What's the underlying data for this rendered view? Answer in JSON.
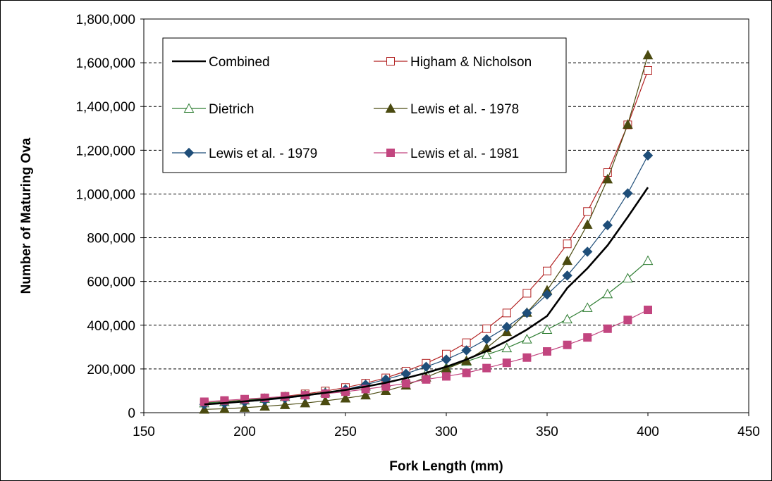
{
  "chart_data": {
    "type": "line",
    "title": "",
    "xlabel": "Fork Length (mm)",
    "ylabel": "Number of Maturing Ova",
    "xlim": [
      150,
      450
    ],
    "ylim": [
      0,
      1800000
    ],
    "x_ticks": [
      150,
      200,
      250,
      300,
      350,
      400,
      450
    ],
    "x_tick_labels": [
      "150",
      "200",
      "250",
      "300",
      "350",
      "400",
      "450"
    ],
    "y_ticks": [
      0,
      200000,
      400000,
      600000,
      800000,
      1000000,
      1200000,
      1400000,
      1600000,
      1800000
    ],
    "y_tick_labels": [
      "0",
      "200,000",
      "400,000",
      "600,000",
      "800,000",
      "1,000,000",
      "1,200,000",
      "1,400,000",
      "1,600,000",
      "1,800,000"
    ],
    "grid": "horizontal dashed",
    "legend_position": "top-left inside",
    "x": [
      180,
      190,
      200,
      210,
      220,
      230,
      240,
      250,
      260,
      270,
      280,
      290,
      300,
      310,
      320,
      330,
      340,
      350,
      360,
      370,
      380,
      390,
      400
    ],
    "series": [
      {
        "name": "Combined",
        "color": "#000000",
        "marker": "none",
        "values": [
          38000,
          44000,
          52000,
          60000,
          69000,
          79000,
          91000,
          104000,
          119000,
          137000,
          158000,
          182000,
          210000,
          243000,
          282000,
          327000,
          380000,
          442000,
          570000,
          660000,
          765000,
          895000,
          1030000
        ]
      },
      {
        "name": "Higham & Nicholson",
        "color": "#b22222",
        "marker": "square-open",
        "values": [
          45000,
          51000,
          58000,
          66000,
          75000,
          86000,
          99000,
          115000,
          135000,
          159000,
          190000,
          226000,
          268000,
          320000,
          384000,
          456000,
          546000,
          648000,
          772000,
          920000,
          1098000,
          1316000,
          1565000
        ]
      },
      {
        "name": "Dietrich",
        "color": "#2e7d32",
        "marker": "triangle-open",
        "values": [
          44000,
          50000,
          57000,
          65000,
          73000,
          82000,
          93000,
          106000,
          121000,
          137000,
          157000,
          180000,
          206000,
          234000,
          265000,
          296000,
          336000,
          380000,
          428000,
          480000,
          543000,
          615000,
          695000
        ]
      },
      {
        "name": "Lewis et al. - 1978",
        "color": "#4a4a10",
        "marker": "triangle-filled",
        "values": [
          15000,
          18000,
          23000,
          29000,
          36000,
          44000,
          54000,
          66000,
          80000,
          100000,
          125000,
          162000,
          200000,
          238000,
          296000,
          370000,
          458000,
          560000,
          695000,
          860000,
          1068000,
          1318000,
          1635000
        ]
      },
      {
        "name": "Lewis et al. - 1979",
        "color": "#1f4e79",
        "marker": "diamond-filled",
        "values": [
          38000,
          43000,
          50000,
          57000,
          66000,
          77000,
          90000,
          106000,
          128000,
          152000,
          178000,
          210000,
          243000,
          285000,
          336000,
          392000,
          456000,
          540000,
          627000,
          736000,
          857000,
          1003000,
          1176000
        ]
      },
      {
        "name": "Lewis et al. - 1981",
        "color": "#c2457f",
        "marker": "square-filled",
        "values": [
          50000,
          56000,
          62000,
          68000,
          74000,
          80000,
          87000,
          96000,
          108000,
          120000,
          134000,
          152000,
          166000,
          182000,
          204000,
          228000,
          252000,
          280000,
          310000,
          344000,
          384000,
          424000,
          470000
        ]
      }
    ]
  }
}
